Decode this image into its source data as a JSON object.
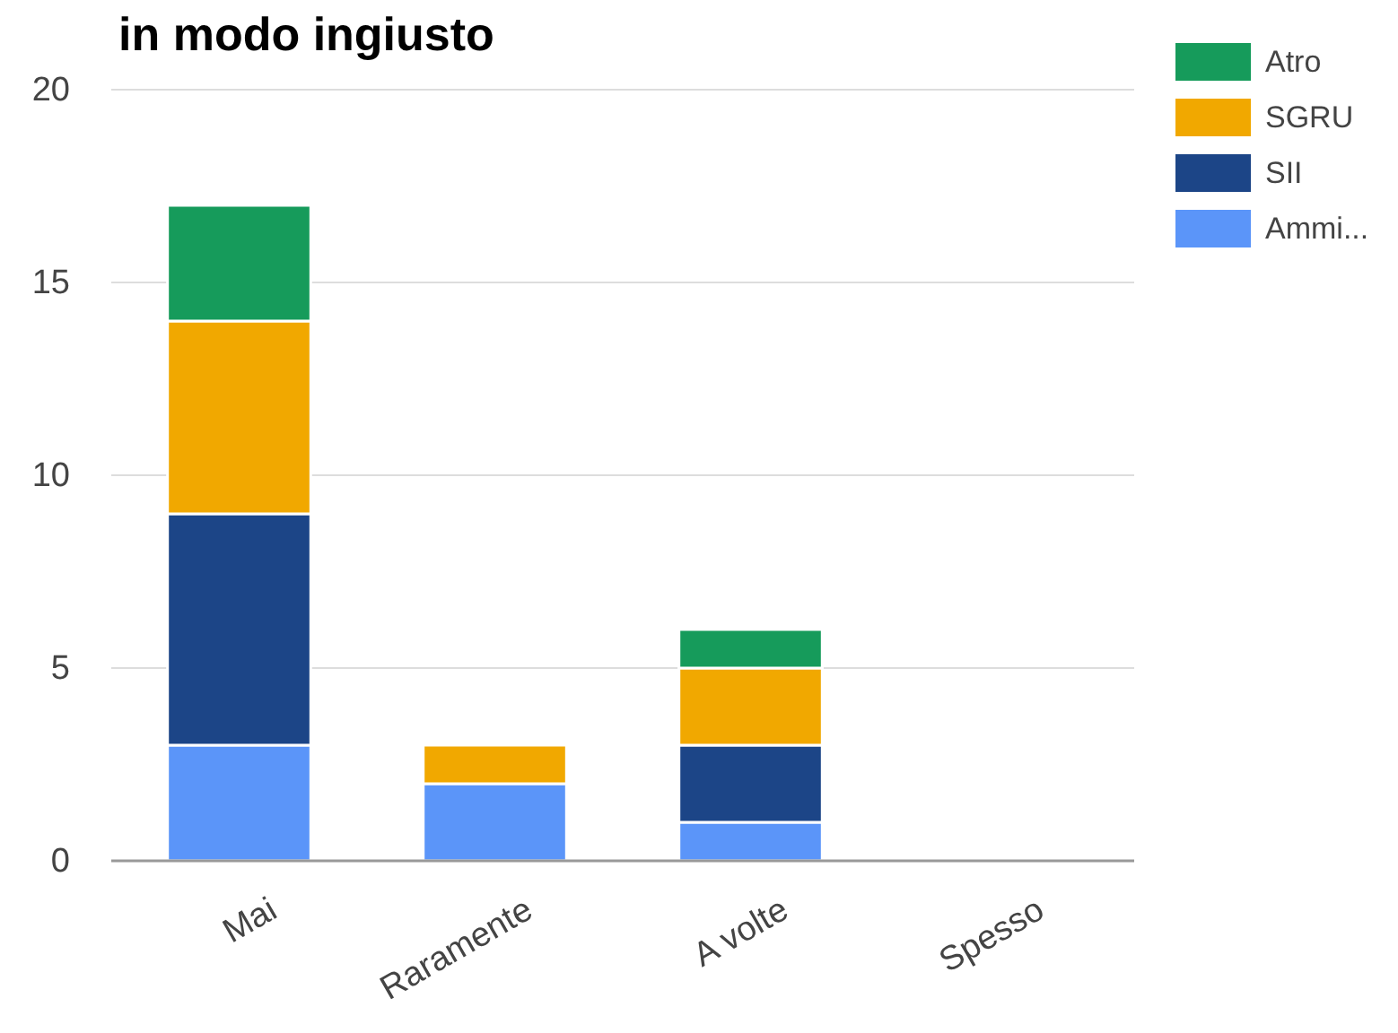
{
  "chart_data": {
    "type": "bar",
    "title": "in modo ingiusto",
    "stacked": true,
    "categories": [
      "Mai",
      "Raramente",
      "A volte",
      "Spesso"
    ],
    "series": [
      {
        "name": "Ammi...",
        "color": "#5b95f9",
        "values": [
          3,
          2,
          1,
          0
        ]
      },
      {
        "name": "SII",
        "color": "#1c4587",
        "values": [
          6,
          0,
          2,
          0
        ]
      },
      {
        "name": "SGRU",
        "color": "#f1a800",
        "values": [
          5,
          1,
          2,
          0
        ]
      },
      {
        "name": "Atro",
        "color": "#169b5b",
        "values": [
          3,
          0,
          1,
          0
        ]
      }
    ],
    "ylim": [
      0,
      20
    ],
    "yticks": [
      0,
      5,
      10,
      15,
      20
    ],
    "grid": "y",
    "legend": "top right"
  }
}
